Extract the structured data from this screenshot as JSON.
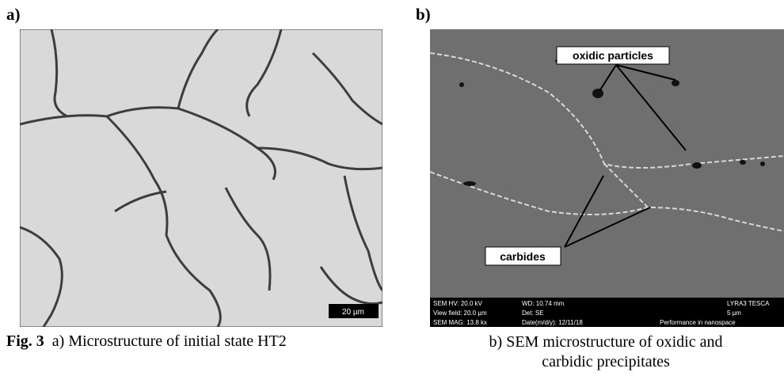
{
  "panels": [
    {
      "label": "a)",
      "scale_bar": "20 µm"
    },
    {
      "label": "b)",
      "annotations": [
        "oxidic particles",
        "carbides"
      ],
      "info_bar": [
        [
          "SEM HV: 20.0 kV",
          "WD: 10.74 mm",
          "LYRA3 TESCA"
        ],
        [
          "View field: 20.0 µm",
          "Det: SE",
          "5 µm"
        ],
        [
          "SEM MAG: 13.8 kx",
          "Date(m/d/y): 12/11/18",
          "Performance in nanospace"
        ]
      ]
    }
  ],
  "captions": {
    "figure": "Fig. 3",
    "a": "a) Microstructure of initial state HT2",
    "b": [
      "b) SEM microstructure of oxidic and",
      "carbidic precipitates"
    ]
  }
}
